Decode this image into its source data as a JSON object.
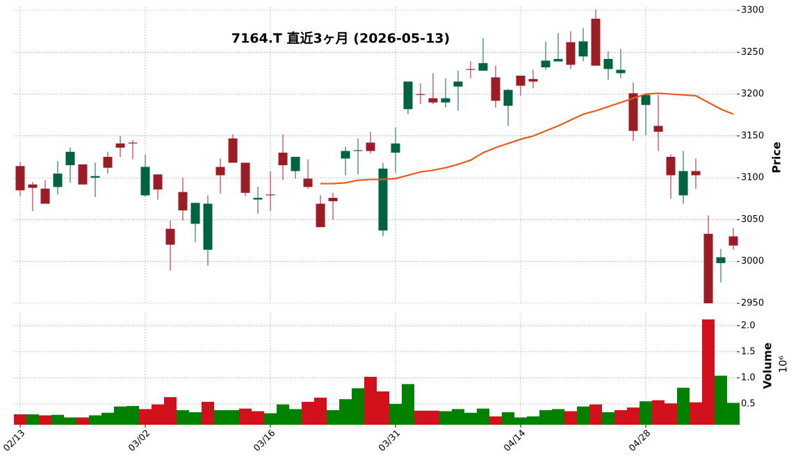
{
  "chart_data": {
    "type": "candlestick",
    "title": "7164.T  直近3ヶ月 (2026-05-13)",
    "categories": [
      "02/13",
      null,
      null,
      null,
      null,
      null,
      null,
      null,
      null,
      null,
      "03/02",
      null,
      null,
      null,
      null,
      null,
      null,
      null,
      null,
      null,
      "03/16",
      null,
      null,
      null,
      null,
      null,
      null,
      null,
      null,
      null,
      "03/31",
      null,
      null,
      null,
      null,
      null,
      null,
      null,
      null,
      null,
      "04/14",
      null,
      null,
      null,
      null,
      null,
      null,
      null,
      null,
      null,
      "04/28",
      null,
      null,
      null,
      null,
      null,
      null,
      null
    ],
    "open": [
      3114,
      3092,
      3087,
      3089,
      3115,
      3116,
      3100,
      3125,
      3141,
      3142,
      3079,
      3104,
      3039,
      3083,
      3045,
      3014,
      3113,
      3147,
      3118,
      3074,
      3080,
      3130,
      3108,
      3099,
      3069,
      3076,
      3123,
      3132,
      3142,
      3037,
      3130,
      3182,
      3200,
      3195,
      3190,
      3209,
      3230,
      3228,
      3220,
      3186,
      3222,
      3218,
      3232,
      3239,
      3262,
      3245,
      3290,
      3230,
      3225,
      3201,
      3187,
      3162,
      3125,
      3079,
      3108,
      3033,
      2998,
      3030
    ],
    "high": [
      3119,
      3095,
      3097,
      3120,
      3136,
      3116,
      3118,
      3131,
      3150,
      3145,
      3128,
      3104,
      3049,
      3100,
      3070,
      3079,
      3123,
      3152,
      3118,
      3089,
      3108,
      3152,
      3125,
      3122,
      3079,
      3082,
      3137,
      3147,
      3155,
      3118,
      3160,
      3215,
      3213,
      3225,
      3219,
      3228,
      3239,
      3267,
      3234,
      3206,
      3222,
      3229,
      3263,
      3273,
      3275,
      3279,
      3301,
      3251,
      3254,
      3214,
      3199,
      3199,
      3128,
      3132,
      3123,
      3055,
      3015,
      3040
    ],
    "low": [
      3078,
      3060,
      3069,
      3080,
      3094,
      3092,
      3077,
      3105,
      3125,
      3122,
      3077,
      3074,
      2989,
      3049,
      3023,
      2995,
      3081,
      3118,
      3078,
      3057,
      3060,
      3097,
      3099,
      3087,
      3041,
      3050,
      3103,
      3104,
      3129,
      3030,
      3106,
      3176,
      3188,
      3188,
      3184,
      3180,
      3219,
      3228,
      3184,
      3162,
      3198,
      3207,
      3229,
      3239,
      3230,
      3239,
      3234,
      3217,
      3219,
      3144,
      3151,
      3132,
      3075,
      3069,
      3087,
      2950,
      2975,
      3014
    ],
    "close": [
      3085,
      3088,
      3069,
      3105,
      3131,
      3092,
      3102,
      3112,
      3136,
      3141,
      3113,
      3086,
      3020,
      3061,
      3070,
      3069,
      3103,
      3118,
      3082,
      3076,
      3079,
      3115,
      3125,
      3089,
      3041,
      3072,
      3132,
      3133,
      3132,
      3111,
      3141,
      3215,
      3199,
      3190,
      3195,
      3215,
      3229,
      3237,
      3192,
      3205,
      3210,
      3215,
      3240,
      3242,
      3235,
      3263,
      3234,
      3242,
      3229,
      3156,
      3199,
      3155,
      3103,
      3108,
      3103,
      2950,
      3005,
      3019
    ],
    "up_color": "#006340",
    "down_color": "#9b1c25",
    "ylim": [
      2950,
      3300
    ],
    "yticks": [
      2950,
      3000,
      3050,
      3100,
      3150,
      3200,
      3250,
      3300
    ],
    "ylabel": "Price",
    "grid": true,
    "ma": {
      "color": "#e8591c",
      "values": [
        null,
        null,
        null,
        null,
        null,
        null,
        null,
        null,
        null,
        null,
        null,
        null,
        null,
        null,
        null,
        null,
        null,
        null,
        null,
        null,
        null,
        null,
        null,
        null,
        3093,
        3093,
        3094,
        3097,
        3098,
        3098,
        3099,
        3103,
        3107,
        3109,
        3112,
        3116,
        3121,
        3130,
        3136,
        3141,
        3146,
        3150,
        3156,
        3162,
        3169,
        3176,
        3180,
        3185,
        3190,
        3195,
        3200,
        3201,
        3200,
        3199,
        3198,
        3190,
        3182,
        3176
      ]
    },
    "volume": {
      "ylabel": "Volume",
      "offset_label": "10⁶",
      "ylim": [
        0.1,
        2.15
      ],
      "yticks": [
        0.5,
        {
          "value": 1.0,
          "label": "1.0"
        },
        1.5,
        {
          "value": 2.0,
          "label": "2.0"
        }
      ],
      "values": [
        0.3,
        0.3,
        0.28,
        0.29,
        0.24,
        0.24,
        0.28,
        0.33,
        0.45,
        0.46,
        0.4,
        0.49,
        0.63,
        0.38,
        0.34,
        0.54,
        0.38,
        0.38,
        0.41,
        0.36,
        0.32,
        0.49,
        0.4,
        0.54,
        0.62,
        0.38,
        0.59,
        0.8,
        1.02,
        0.74,
        0.5,
        0.88,
        0.37,
        0.37,
        0.36,
        0.4,
        0.33,
        0.41,
        0.26,
        0.34,
        0.24,
        0.26,
        0.38,
        0.4,
        0.36,
        0.45,
        0.49,
        0.34,
        0.38,
        0.43,
        0.55,
        0.57,
        0.51,
        0.81,
        0.53,
        2.12,
        1.04,
        0.52
      ],
      "colors": [
        "#d0101a",
        "#008000",
        "#d0101a",
        "#008000",
        "#008000",
        "#d0101a",
        "#008000",
        "#008000",
        "#008000",
        "#008000",
        "#d0101a",
        "#d0101a",
        "#d0101a",
        "#008000",
        "#008000",
        "#d0101a",
        "#008000",
        "#008000",
        "#d0101a",
        "#d0101a",
        "#008000",
        "#008000",
        "#008000",
        "#d0101a",
        "#d0101a",
        "#008000",
        "#008000",
        "#008000",
        "#d0101a",
        "#d0101a",
        "#008000",
        "#008000",
        "#d0101a",
        "#d0101a",
        "#008000",
        "#008000",
        "#008000",
        "#008000",
        "#d0101a",
        "#008000",
        "#008000",
        "#008000",
        "#008000",
        "#008000",
        "#d0101a",
        "#008000",
        "#d0101a",
        "#008000",
        "#d0101a",
        "#d0101a",
        "#008000",
        "#d0101a",
        "#d0101a",
        "#008000",
        "#d0101a",
        "#d0101a",
        "#008000",
        "#008000"
      ]
    }
  }
}
